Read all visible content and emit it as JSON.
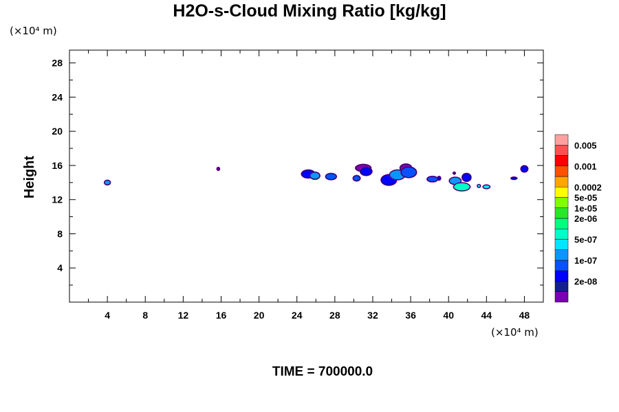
{
  "chart_data": {
    "type": "heatmap",
    "title": "H2O-s-Cloud Mixing Ratio [kg/kg]",
    "ylabel": "Height",
    "xlabel": "",
    "x_unit": "(×10⁴ m)",
    "y_unit": "(×10⁴ m)",
    "xlim": [
      0,
      50
    ],
    "ylim": [
      0,
      29.5
    ],
    "x_ticks": [
      4,
      8,
      12,
      16,
      20,
      24,
      28,
      32,
      36,
      40,
      44,
      48
    ],
    "y_ticks": [
      4,
      8,
      12,
      16,
      20,
      24,
      28
    ],
    "time_label": "TIME = 700000.0",
    "colorbar": {
      "colors": [
        "#7a00b0",
        "#141e8c",
        "#0000ff",
        "#0a50ff",
        "#0a96ff",
        "#00e6ff",
        "#00ffc8",
        "#00ff80",
        "#28e628",
        "#80ff00",
        "#ffff00",
        "#ffa500",
        "#ff5000",
        "#ff0000",
        "#ff5050",
        "#ffa0a0"
      ],
      "labels": [
        {
          "text": "2e-08",
          "after_index": 1
        },
        {
          "text": "1e-07",
          "after_index": 3
        },
        {
          "text": "5e-07",
          "after_index": 5
        },
        {
          "text": "2e-06",
          "after_index": 7
        },
        {
          "text": "1e-05",
          "after_index": 8
        },
        {
          "text": "5e-05",
          "after_index": 9
        },
        {
          "text": "0.0002",
          "after_index": 10
        },
        {
          "text": "0.001",
          "after_index": 12
        },
        {
          "text": "0.005",
          "after_index": 14
        }
      ]
    },
    "blobs": [
      {
        "x": 4.0,
        "y": 14.0,
        "rx": 0.3,
        "ry": 0.25,
        "level": 4
      },
      {
        "x": 15.7,
        "y": 15.6,
        "rx": 0.12,
        "ry": 0.15,
        "level": 0
      },
      {
        "x": 25.2,
        "y": 15.0,
        "rx": 0.7,
        "ry": 0.45,
        "level": 2
      },
      {
        "x": 25.9,
        "y": 14.8,
        "rx": 0.5,
        "ry": 0.4,
        "level": 4
      },
      {
        "x": 27.6,
        "y": 14.7,
        "rx": 0.55,
        "ry": 0.35,
        "level": 3
      },
      {
        "x": 30.3,
        "y": 14.5,
        "rx": 0.35,
        "ry": 0.3,
        "level": 3
      },
      {
        "x": 31.0,
        "y": 15.7,
        "rx": 0.8,
        "ry": 0.4,
        "level": 0
      },
      {
        "x": 31.3,
        "y": 15.3,
        "rx": 0.6,
        "ry": 0.45,
        "level": 2
      },
      {
        "x": 33.7,
        "y": 14.3,
        "rx": 0.8,
        "ry": 0.6,
        "level": 2
      },
      {
        "x": 34.6,
        "y": 14.9,
        "rx": 0.8,
        "ry": 0.55,
        "level": 4
      },
      {
        "x": 35.5,
        "y": 15.7,
        "rx": 0.6,
        "ry": 0.45,
        "level": 0
      },
      {
        "x": 35.8,
        "y": 15.2,
        "rx": 0.8,
        "ry": 0.6,
        "level": 3
      },
      {
        "x": 38.3,
        "y": 14.4,
        "rx": 0.55,
        "ry": 0.3,
        "level": 3
      },
      {
        "x": 39.0,
        "y": 14.5,
        "rx": 0.15,
        "ry": 0.2,
        "level": 2
      },
      {
        "x": 40.7,
        "y": 14.2,
        "rx": 0.6,
        "ry": 0.4,
        "level": 4
      },
      {
        "x": 41.9,
        "y": 14.6,
        "rx": 0.45,
        "ry": 0.45,
        "level": 2
      },
      {
        "x": 41.4,
        "y": 13.5,
        "rx": 0.85,
        "ry": 0.45,
        "level": 6
      },
      {
        "x": 43.2,
        "y": 13.6,
        "rx": 0.15,
        "ry": 0.15,
        "level": 5
      },
      {
        "x": 44.0,
        "y": 13.5,
        "rx": 0.35,
        "ry": 0.2,
        "level": 5
      },
      {
        "x": 40.6,
        "y": 15.1,
        "rx": 0.1,
        "ry": 0.1,
        "level": 0
      },
      {
        "x": 46.9,
        "y": 14.5,
        "rx": 0.3,
        "ry": 0.12,
        "level": 2
      },
      {
        "x": 48.0,
        "y": 15.6,
        "rx": 0.35,
        "ry": 0.35,
        "level": 2
      }
    ]
  }
}
